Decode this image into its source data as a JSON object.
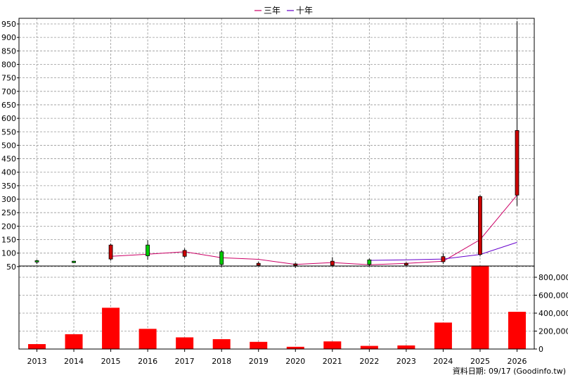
{
  "legend": [
    {
      "label": "三年",
      "color": "#cc0066"
    },
    {
      "label": "十年",
      "color": "#6600cc"
    }
  ],
  "footer": "資料日期: 09/17  (Goodinfo.tw)",
  "chart_data": [
    {
      "type": "candlestick",
      "categories": [
        "2013",
        "2014",
        "2015",
        "2016",
        "2017",
        "2018",
        "2019",
        "2020",
        "2021",
        "2022",
        "2023",
        "2024",
        "2025",
        "2026"
      ],
      "ohlc": [
        {
          "open": 67,
          "high": 75,
          "low": 60,
          "close": 72
        },
        {
          "open": 67,
          "high": 72,
          "low": 63,
          "close": 70
        },
        {
          "open": 130,
          "high": 135,
          "low": 72,
          "close": 78
        },
        {
          "open": 90,
          "high": 148,
          "low": 75,
          "close": 130
        },
        {
          "open": 110,
          "high": 118,
          "low": 82,
          "close": 88
        },
        {
          "open": 58,
          "high": 112,
          "low": 48,
          "close": 105
        },
        {
          "open": 62,
          "high": 68,
          "low": 52,
          "close": 55
        },
        {
          "open": 60,
          "high": 64,
          "low": 45,
          "close": 55
        },
        {
          "open": 70,
          "high": 85,
          "low": 50,
          "close": 55
        },
        {
          "open": 58,
          "high": 80,
          "low": 50,
          "close": 75
        },
        {
          "open": 62,
          "high": 66,
          "low": 52,
          "close": 56
        },
        {
          "open": 87,
          "high": 100,
          "low": 60,
          "close": 68
        },
        {
          "open": 310,
          "high": 315,
          "low": 88,
          "close": 95
        },
        {
          "open": 555,
          "high": 960,
          "low": 275,
          "close": 315
        }
      ],
      "up_color": "#00cc00",
      "down_color": "#cc0000",
      "lines": [
        {
          "name": "三年",
          "x_start": 2,
          "values": [
            88,
            96,
            105,
            83,
            77,
            58,
            65,
            57,
            62,
            70,
            150,
            315
          ],
          "color": "#cc0066"
        },
        {
          "name": "十年",
          "x_start": 9,
          "values": [
            73,
            75,
            78,
            95,
            140
          ],
          "color": "#6600cc"
        }
      ],
      "ylim": [
        0,
        960
      ],
      "yticks": [
        50,
        100,
        150,
        200,
        250,
        300,
        350,
        400,
        450,
        500,
        550,
        600,
        650,
        700,
        750,
        800,
        850,
        900,
        950
      ],
      "grid": true
    },
    {
      "type": "bar",
      "categories": [
        "2013",
        "2014",
        "2015",
        "2016",
        "2017",
        "2018",
        "2019",
        "2020",
        "2021",
        "2022",
        "2023",
        "2024",
        "2025",
        "2026"
      ],
      "values": [
        55000,
        165000,
        460000,
        225000,
        130000,
        110000,
        80000,
        25000,
        85000,
        35000,
        40000,
        295000,
        930000,
        415000
      ],
      "color": "#ff0000",
      "ylim": [
        0,
        960000
      ],
      "yticks": [
        0,
        200000,
        400000,
        600000,
        800000
      ],
      "ytick_labels": [
        "0",
        "200,000",
        "400,000",
        "600,000",
        "800,000"
      ],
      "ytick_side": "right",
      "grid": true
    }
  ]
}
